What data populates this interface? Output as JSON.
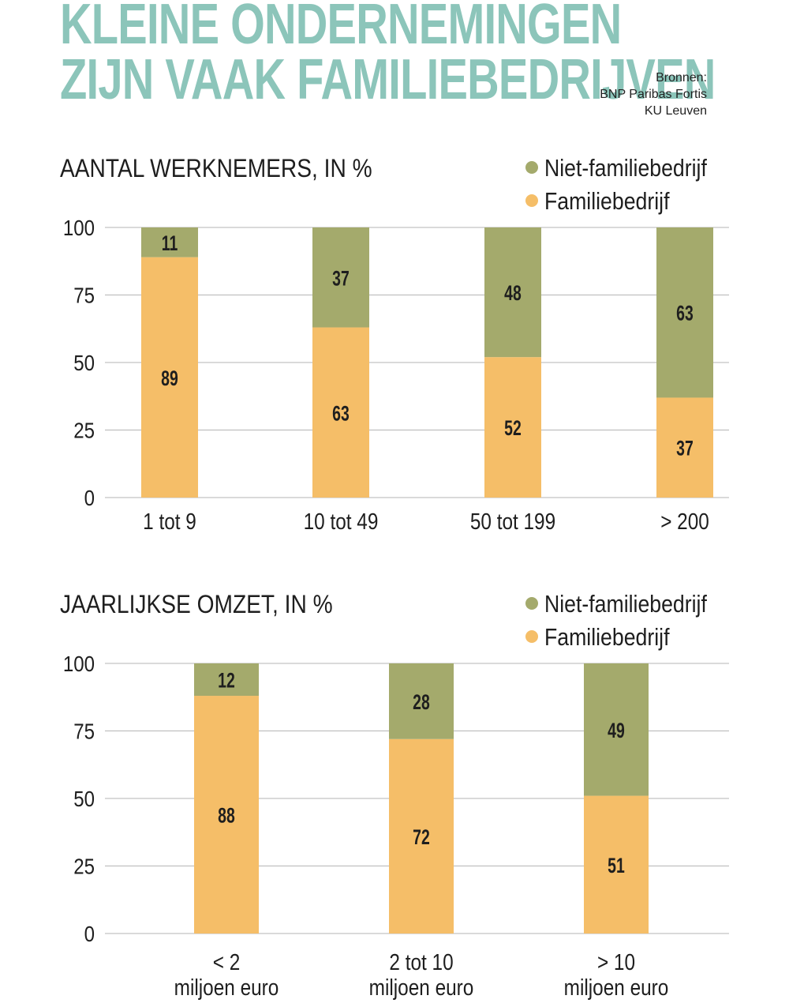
{
  "header": {
    "title_line1": "KLEINE ONDERNEMINGEN",
    "title_line2": "ZIJN VAAK FAMILIEBEDRIJVEN",
    "sources": [
      "Bronnen:",
      "BNP Paribas Fortis",
      "KU Leuven"
    ]
  },
  "colors": {
    "familie": "#f5be68",
    "niet_familie": "#a4aa6c",
    "title": "#8cc5ba",
    "grid": "#b5b5b5"
  },
  "chart_data": [
    {
      "type": "bar",
      "stacked": true,
      "title": "AANTAL WERKNEMERS, IN %",
      "categories": [
        [
          "1 tot 9"
        ],
        [
          "10 tot 49"
        ],
        [
          "50 tot 199"
        ],
        [
          ">  200"
        ]
      ],
      "series": [
        {
          "name": "Familiebedrijf",
          "values": [
            89,
            63,
            52,
            37
          ]
        },
        {
          "name": "Niet-familiebedrijf",
          "values": [
            11,
            37,
            48,
            63
          ]
        }
      ],
      "legend": [
        "Niet-familiebedrijf",
        "Familiebedrijf"
      ],
      "legend_position": "top-right",
      "yticks": [
        0,
        25,
        50,
        75,
        100
      ],
      "ylim": [
        0,
        100
      ],
      "grid": true
    },
    {
      "type": "bar",
      "stacked": true,
      "title": "JAARLIJKSE OMZET, IN %",
      "categories": [
        [
          "< 2",
          "miljoen euro"
        ],
        [
          "2 tot 10",
          "miljoen euro"
        ],
        [
          "> 10",
          "miljoen euro"
        ]
      ],
      "series": [
        {
          "name": "Familiebedrijf",
          "values": [
            88,
            72,
            51
          ]
        },
        {
          "name": "Niet-familiebedrijf",
          "values": [
            12,
            28,
            49
          ]
        }
      ],
      "legend": [
        "Niet-familiebedrijf",
        "Familiebedrijf"
      ],
      "legend_position": "top-right",
      "yticks": [
        0,
        25,
        50,
        75,
        100
      ],
      "ylim": [
        0,
        100
      ],
      "grid": true
    }
  ]
}
